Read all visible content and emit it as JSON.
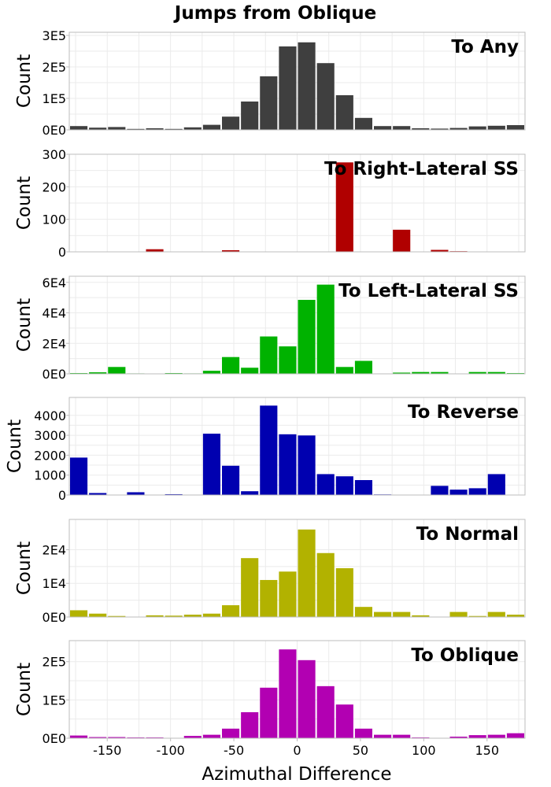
{
  "title": "Jumps from Oblique",
  "xlabel": "Azimuthal Difference",
  "chart_data": {
    "type": "bar",
    "title": "Jumps from Oblique",
    "xlabel": "Azimuthal Difference",
    "xlim": [
      -180,
      180
    ],
    "x_ticks": [
      -150,
      -100,
      -50,
      0,
      50,
      100,
      150
    ],
    "bin_width": 15,
    "x": [
      -172.5,
      -157.5,
      -142.5,
      -127.5,
      -112.5,
      -97.5,
      -82.5,
      -67.5,
      -52.5,
      -37.5,
      -22.5,
      -7.5,
      7.5,
      22.5,
      37.5,
      52.5,
      67.5,
      82.5,
      97.5,
      112.5,
      127.5,
      142.5,
      157.5,
      172.5
    ],
    "panels": [
      {
        "label": "To Any",
        "ylabel": "Count",
        "color": "#3f3f3f",
        "ylim": [
          0,
          310000
        ],
        "y_ticks": [
          0,
          100000,
          200000,
          300000
        ],
        "y_tick_labels": [
          "0E0",
          "1E5",
          "2E5",
          "3E5"
        ],
        "values": [
          12000,
          7000,
          9000,
          3000,
          5000,
          3000,
          8000,
          16000,
          42000,
          90000,
          170000,
          265000,
          278000,
          212000,
          110000,
          38000,
          12000,
          12000,
          5000,
          4000,
          6000,
          11000,
          13000,
          15000
        ]
      },
      {
        "label": "To Right-Lateral SS",
        "ylabel": "Count",
        "color": "#b00000",
        "ylim": [
          0,
          300
        ],
        "y_ticks": [
          0,
          100,
          200,
          300
        ],
        "y_tick_labels": [
          "0",
          "100",
          "200",
          "300"
        ],
        "values": [
          0,
          0,
          0,
          0,
          8,
          0,
          0,
          0,
          5,
          0,
          0,
          0,
          0,
          0,
          275,
          0,
          0,
          68,
          0,
          6,
          2,
          0,
          0,
          0
        ]
      },
      {
        "label": "To Left-Lateral SS",
        "ylabel": "Count",
        "color": "#00b200",
        "ylim": [
          0,
          64000
        ],
        "y_ticks": [
          0,
          20000,
          40000,
          60000
        ],
        "y_tick_labels": [
          "0E0",
          "2E4",
          "4E4",
          "6E4"
        ],
        "values": [
          500,
          1000,
          4500,
          300,
          200,
          500,
          300,
          2000,
          11000,
          4000,
          24500,
          18000,
          48500,
          58500,
          4500,
          8500,
          200,
          800,
          1200,
          1200,
          200,
          1200,
          1200,
          500
        ]
      },
      {
        "label": "To Reverse",
        "ylabel": "Count",
        "color": "#0000b0",
        "ylim": [
          0,
          4900
        ],
        "y_ticks": [
          0,
          1000,
          2000,
          3000,
          4000
        ],
        "y_tick_labels": [
          "0",
          "1000",
          "2000",
          "3000",
          "4000"
        ],
        "values": [
          1880,
          100,
          0,
          140,
          0,
          40,
          20,
          3080,
          1470,
          190,
          4490,
          3050,
          2990,
          1050,
          940,
          750,
          30,
          0,
          0,
          460,
          270,
          340,
          1050,
          0
        ]
      },
      {
        "label": "To Normal",
        "ylabel": "Count",
        "color": "#b2b200",
        "ylim": [
          0,
          29000
        ],
        "y_ticks": [
          0,
          10000,
          20000
        ],
        "y_tick_labels": [
          "0E0",
          "1E4",
          "2E4"
        ],
        "values": [
          2000,
          1000,
          300,
          100,
          500,
          400,
          700,
          1000,
          3500,
          17500,
          11000,
          13500,
          26000,
          19000,
          14500,
          3000,
          1500,
          1500,
          500,
          100,
          1500,
          300,
          1500,
          700
        ]
      },
      {
        "label": "To Oblique",
        "ylabel": "Count",
        "color": "#b200b2",
        "ylim": [
          0,
          255000
        ],
        "y_ticks": [
          0,
          100000,
          200000
        ],
        "y_tick_labels": [
          "0E0",
          "1E5",
          "2E5"
        ],
        "values": [
          7000,
          3000,
          3000,
          2000,
          2000,
          1000,
          6000,
          9000,
          25000,
          68000,
          132000,
          232000,
          204000,
          136000,
          88000,
          25000,
          9000,
          9000,
          2000,
          1000,
          4000,
          8000,
          9000,
          13000
        ]
      }
    ]
  }
}
